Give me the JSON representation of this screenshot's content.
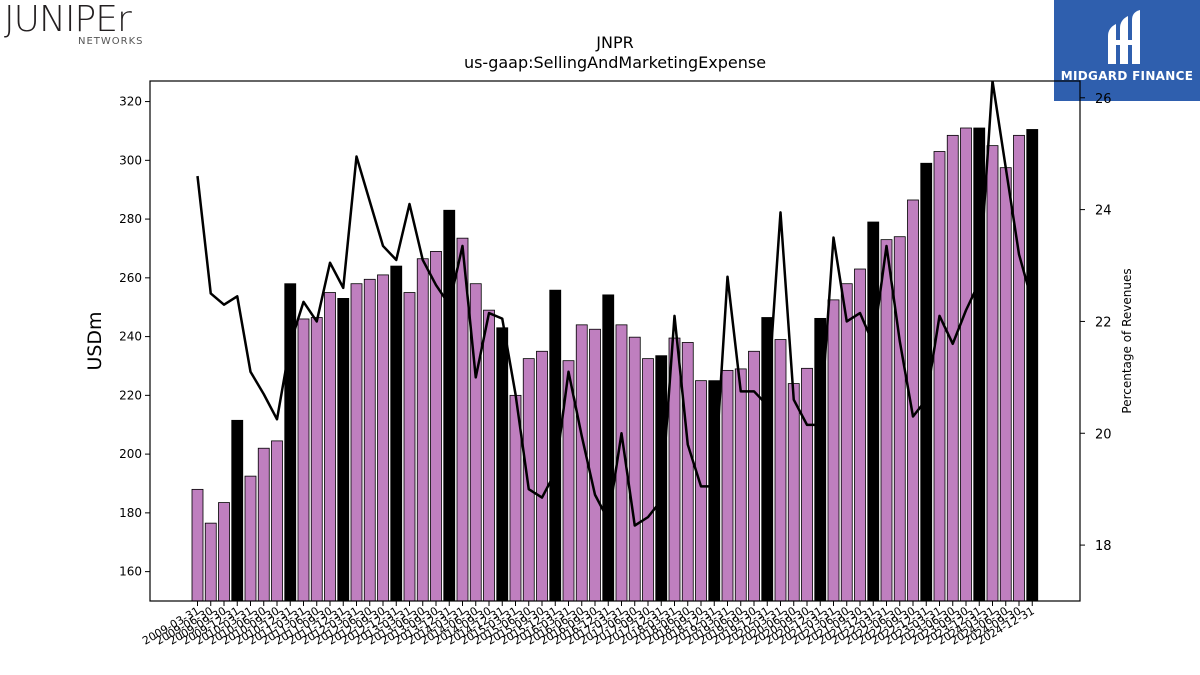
{
  "logos": {
    "left_word": "JUNIPEr",
    "left_sub": "NETWORKS",
    "right_brand": "MIDGARD FINANCE"
  },
  "chart_data": {
    "type": "bar",
    "title": "JNPR",
    "subtitle": "us-gaap:SellingAndMarketingExpense",
    "ylabel": "USDm",
    "y2label": "Percentage of Revenues",
    "ylim": [
      150,
      327
    ],
    "y2lim": [
      17,
      26.3
    ],
    "yticks": [
      160,
      180,
      200,
      220,
      240,
      260,
      280,
      300,
      320
    ],
    "y2ticks": [
      18,
      20,
      22,
      24,
      26
    ],
    "grid": false,
    "colors": {
      "quarter": "#bf7fbf",
      "annual": "#000000",
      "line": "#000000"
    },
    "categories": [
      "2009-03-31",
      "2009-06-30",
      "2009-09-30",
      "2009-12-31",
      "2010-03-31",
      "2010-06-30",
      "2010-09-30",
      "2010-12-31",
      "2011-03-31",
      "2011-06-30",
      "2011-09-30",
      "2011-12-31",
      "2012-03-31",
      "2012-06-30",
      "2012-09-30",
      "2012-12-31",
      "2013-03-31",
      "2013-06-30",
      "2013-09-30",
      "2013-12-31",
      "2014-03-31",
      "2014-06-30",
      "2014-09-30",
      "2014-12-31",
      "2015-03-31",
      "2015-06-30",
      "2015-09-30",
      "2015-12-31",
      "2016-03-31",
      "2016-06-30",
      "2016-09-30",
      "2016-12-31",
      "2017-03-31",
      "2017-06-30",
      "2017-09-30",
      "2017-12-31",
      "2018-03-31",
      "2018-06-30",
      "2018-09-30",
      "2018-12-31",
      "2019-03-31",
      "2019-06-30",
      "2019-09-30",
      "2019-12-31",
      "2020-03-31",
      "2020-06-30",
      "2020-09-30",
      "2020-12-31",
      "2021-03-31",
      "2021-06-30",
      "2021-09-30",
      "2021-12-31",
      "2022-03-31",
      "2022-06-30",
      "2022-09-30",
      "2022-12-31",
      "2023-03-31",
      "2023-06-30",
      "2023-09-30",
      "2023-12-31",
      "2024-03-31",
      "2024-06-30",
      "2024-09-30",
      "2024-12-31"
    ],
    "series": [
      {
        "values": [
          188,
          176.5,
          183.5,
          211.5,
          192.5,
          202,
          204.5,
          258,
          246,
          246.5,
          255,
          253,
          258,
          259.5,
          261,
          264,
          255,
          266.5,
          269,
          283,
          273.5,
          258,
          249,
          243,
          220,
          232.5,
          235,
          255.8,
          231.8,
          244,
          242.5,
          254.2,
          244,
          239.8,
          232.5,
          233.5,
          239.5,
          238,
          225,
          225,
          228.5,
          229,
          235,
          246.5,
          239,
          224,
          229.2,
          246.2,
          252.5,
          258,
          263,
          279,
          273,
          274,
          286.5,
          299,
          303,
          308.5,
          311,
          311,
          305,
          297.5,
          308.5,
          310.5
        ],
        "annual_flags": [
          0,
          0,
          0,
          1,
          0,
          0,
          0,
          1,
          0,
          0,
          0,
          1,
          0,
          0,
          0,
          1,
          0,
          0,
          0,
          1,
          0,
          0,
          0,
          1,
          0,
          0,
          0,
          1,
          0,
          0,
          0,
          1,
          0,
          0,
          0,
          1,
          0,
          0,
          0,
          1,
          0,
          0,
          0,
          1,
          0,
          0,
          0,
          1,
          0,
          0,
          0,
          1,
          0,
          0,
          0,
          1,
          0,
          0,
          0,
          1,
          0,
          0,
          0,
          1
        ]
      },
      {
        "type": "line",
        "axis": "right",
        "values": [
          24.6,
          22.5,
          22.3,
          22.45,
          21.1,
          20.7,
          20.25,
          21.6,
          22.35,
          22.0,
          23.05,
          22.6,
          24.95,
          24.15,
          23.35,
          23.1,
          24.1,
          23.1,
          22.65,
          22.3,
          23.35,
          21.0,
          22.15,
          22.05,
          20.7,
          19.0,
          18.85,
          19.3,
          21.1,
          19.95,
          18.9,
          18.45,
          20.0,
          18.35,
          18.5,
          18.8,
          22.1,
          19.8,
          19.05,
          19.05,
          22.8,
          20.75,
          20.75,
          20.5,
          23.95,
          20.6,
          20.15,
          20.15,
          23.5,
          22.0,
          22.15,
          21.6,
          23.35,
          21.65,
          20.3,
          20.6,
          22.1,
          21.6,
          22.2,
          22.7,
          26.3,
          24.75,
          23.2,
          22.35
        ]
      }
    ]
  }
}
